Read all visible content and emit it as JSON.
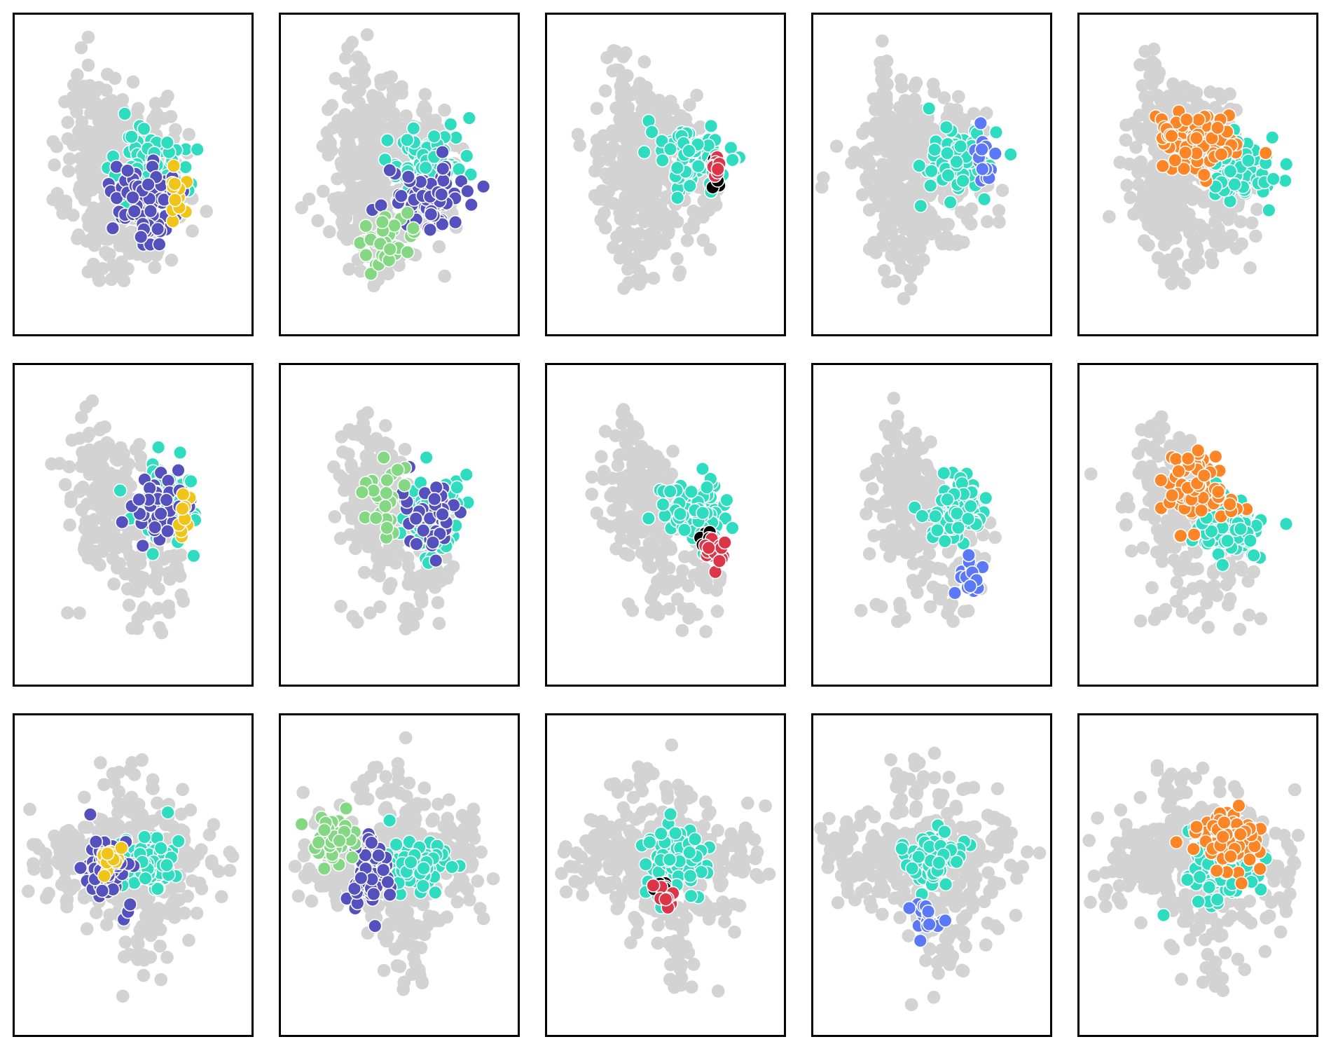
{
  "figure": {
    "rows": 3,
    "cols": 5,
    "background_color": "#d3d3d3",
    "marker_edge_color": "#ffffff",
    "frame_color": "#000000",
    "axes_visible": false
  },
  "cluster_colors": {
    "teal": "#2edcbf",
    "indigo": "#5450bd",
    "yellow": "#f0c419",
    "light-green": "#84d884",
    "red": "#dc3548",
    "black": "#000000",
    "blue": "#5a78f7",
    "orange": "#fd8526"
  },
  "chart_data": [
    {
      "type": "scatter",
      "row": 0,
      "col": 0,
      "grey_shape": "dense-vertical",
      "clusters": [
        {
          "color": "teal",
          "cx": 0.57,
          "cy": 0.48,
          "sx": 0.075,
          "sy": 0.06,
          "n": 95,
          "seed": 11
        },
        {
          "color": "indigo",
          "cx": 0.55,
          "cy": 0.59,
          "sx": 0.07,
          "sy": 0.055,
          "n": 80,
          "seed": 12
        },
        {
          "color": "yellow",
          "cx": 0.68,
          "cy": 0.57,
          "sx": 0.018,
          "sy": 0.035,
          "n": 12,
          "seed": 13
        }
      ]
    },
    {
      "type": "scatter",
      "row": 0,
      "col": 1,
      "grey_shape": "dense-vertical",
      "clusters": [
        {
          "color": "teal",
          "cx": 0.61,
          "cy": 0.47,
          "sx": 0.075,
          "sy": 0.06,
          "n": 95,
          "seed": 21
        },
        {
          "color": "indigo",
          "cx": 0.62,
          "cy": 0.58,
          "sx": 0.075,
          "sy": 0.045,
          "n": 75,
          "seed": 22
        },
        {
          "color": "light-green",
          "cx": 0.43,
          "cy": 0.71,
          "sx": 0.06,
          "sy": 0.05,
          "n": 40,
          "seed": 23
        }
      ]
    },
    {
      "type": "scatter",
      "row": 0,
      "col": 2,
      "grey_shape": "dense-vertical",
      "clusters": [
        {
          "color": "teal",
          "cx": 0.61,
          "cy": 0.45,
          "sx": 0.07,
          "sy": 0.05,
          "n": 85,
          "seed": 31
        },
        {
          "color": "black",
          "cx": 0.72,
          "cy": 0.51,
          "sx": 0.015,
          "sy": 0.02,
          "n": 8,
          "seed": 32
        },
        {
          "color": "red",
          "cx": 0.71,
          "cy": 0.48,
          "sx": 0.015,
          "sy": 0.025,
          "n": 10,
          "seed": 33
        }
      ]
    },
    {
      "type": "scatter",
      "row": 0,
      "col": 3,
      "grey_shape": "dense-vertical",
      "clusters": [
        {
          "color": "teal",
          "cx": 0.62,
          "cy": 0.46,
          "sx": 0.065,
          "sy": 0.05,
          "n": 80,
          "seed": 41
        },
        {
          "color": "blue",
          "cx": 0.72,
          "cy": 0.47,
          "sx": 0.02,
          "sy": 0.04,
          "n": 14,
          "seed": 42
        }
      ]
    },
    {
      "type": "scatter",
      "row": 0,
      "col": 4,
      "grey_shape": "dense-vertical",
      "clusters": [
        {
          "color": "teal",
          "cx": 0.67,
          "cy": 0.48,
          "sx": 0.07,
          "sy": 0.05,
          "n": 85,
          "seed": 51
        },
        {
          "color": "orange",
          "cx": 0.52,
          "cy": 0.4,
          "sx": 0.08,
          "sy": 0.05,
          "n": 80,
          "seed": 52
        }
      ]
    },
    {
      "type": "scatter",
      "row": 1,
      "col": 0,
      "grey_shape": "sparse-vertical",
      "clusters": [
        {
          "color": "teal",
          "cx": 0.63,
          "cy": 0.46,
          "sx": 0.07,
          "sy": 0.06,
          "n": 90,
          "seed": 61
        },
        {
          "color": "indigo",
          "cx": 0.6,
          "cy": 0.45,
          "sx": 0.07,
          "sy": 0.07,
          "n": 45,
          "seed": 62
        },
        {
          "color": "yellow",
          "cx": 0.7,
          "cy": 0.44,
          "sx": 0.02,
          "sy": 0.04,
          "n": 10,
          "seed": 63
        }
      ]
    },
    {
      "type": "scatter",
      "row": 1,
      "col": 1,
      "grey_shape": "sparse-vertical",
      "clusters": [
        {
          "color": "teal",
          "cx": 0.64,
          "cy": 0.47,
          "sx": 0.065,
          "sy": 0.06,
          "n": 90,
          "seed": 71
        },
        {
          "color": "indigo",
          "cx": 0.62,
          "cy": 0.46,
          "sx": 0.07,
          "sy": 0.07,
          "n": 45,
          "seed": 72
        },
        {
          "color": "light-green",
          "cx": 0.44,
          "cy": 0.41,
          "sx": 0.05,
          "sy": 0.06,
          "n": 25,
          "seed": 73
        }
      ]
    },
    {
      "type": "scatter",
      "row": 1,
      "col": 2,
      "grey_shape": "sparse-vertical",
      "clusters": [
        {
          "color": "teal",
          "cx": 0.62,
          "cy": 0.47,
          "sx": 0.065,
          "sy": 0.05,
          "n": 90,
          "seed": 81
        },
        {
          "color": "black",
          "cx": 0.68,
          "cy": 0.54,
          "sx": 0.025,
          "sy": 0.015,
          "n": 12,
          "seed": 82
        },
        {
          "color": "red",
          "cx": 0.71,
          "cy": 0.58,
          "sx": 0.02,
          "sy": 0.03,
          "n": 16,
          "seed": 83
        }
      ]
    },
    {
      "type": "scatter",
      "row": 1,
      "col": 3,
      "grey_shape": "sparse-vertical",
      "clusters": [
        {
          "color": "teal",
          "cx": 0.6,
          "cy": 0.46,
          "sx": 0.065,
          "sy": 0.05,
          "n": 90,
          "seed": 91
        },
        {
          "color": "blue",
          "cx": 0.66,
          "cy": 0.66,
          "sx": 0.035,
          "sy": 0.035,
          "n": 18,
          "seed": 92
        }
      ]
    },
    {
      "type": "scatter",
      "row": 1,
      "col": 4,
      "grey_shape": "sparse-vertical",
      "clusters": [
        {
          "color": "teal",
          "cx": 0.63,
          "cy": 0.5,
          "sx": 0.075,
          "sy": 0.055,
          "n": 90,
          "seed": 101
        },
        {
          "color": "orange",
          "cx": 0.49,
          "cy": 0.39,
          "sx": 0.08,
          "sy": 0.05,
          "n": 80,
          "seed": 102
        }
      ]
    },
    {
      "type": "scatter",
      "row": 2,
      "col": 0,
      "grey_shape": "wide",
      "clusters": [
        {
          "color": "teal",
          "cx": 0.57,
          "cy": 0.47,
          "sx": 0.075,
          "sy": 0.04,
          "n": 95,
          "seed": 111
        },
        {
          "color": "indigo",
          "cx": 0.38,
          "cy": 0.49,
          "sx": 0.05,
          "sy": 0.06,
          "n": 75,
          "seed": 112
        },
        {
          "color": "yellow",
          "cx": 0.41,
          "cy": 0.45,
          "sx": 0.03,
          "sy": 0.035,
          "n": 14,
          "seed": 113
        }
      ]
    },
    {
      "type": "scatter",
      "row": 2,
      "col": 1,
      "grey_shape": "wide",
      "clusters": [
        {
          "color": "teal",
          "cx": 0.57,
          "cy": 0.48,
          "sx": 0.075,
          "sy": 0.04,
          "n": 95,
          "seed": 121
        },
        {
          "color": "indigo",
          "cx": 0.38,
          "cy": 0.5,
          "sx": 0.04,
          "sy": 0.055,
          "n": 70,
          "seed": 122
        },
        {
          "color": "light-green",
          "cx": 0.22,
          "cy": 0.39,
          "sx": 0.05,
          "sy": 0.04,
          "n": 35,
          "seed": 123
        }
      ]
    },
    {
      "type": "scatter",
      "row": 2,
      "col": 2,
      "grey_shape": "wide",
      "clusters": [
        {
          "color": "teal",
          "cx": 0.53,
          "cy": 0.46,
          "sx": 0.06,
          "sy": 0.055,
          "n": 95,
          "seed": 131
        },
        {
          "color": "black",
          "cx": 0.48,
          "cy": 0.54,
          "sx": 0.02,
          "sy": 0.015,
          "n": 10,
          "seed": 132
        },
        {
          "color": "red",
          "cx": 0.5,
          "cy": 0.58,
          "sx": 0.025,
          "sy": 0.025,
          "n": 12,
          "seed": 133
        }
      ]
    },
    {
      "type": "scatter",
      "row": 2,
      "col": 3,
      "grey_shape": "wide",
      "clusters": [
        {
          "color": "teal",
          "cx": 0.49,
          "cy": 0.45,
          "sx": 0.06,
          "sy": 0.04,
          "n": 90,
          "seed": 141
        },
        {
          "color": "blue",
          "cx": 0.47,
          "cy": 0.64,
          "sx": 0.035,
          "sy": 0.04,
          "n": 20,
          "seed": 142
        }
      ]
    },
    {
      "type": "scatter",
      "row": 2,
      "col": 4,
      "grey_shape": "wide",
      "clusters": [
        {
          "color": "teal",
          "cx": 0.58,
          "cy": 0.49,
          "sx": 0.07,
          "sy": 0.05,
          "n": 90,
          "seed": 151
        },
        {
          "color": "orange",
          "cx": 0.64,
          "cy": 0.38,
          "sx": 0.075,
          "sy": 0.05,
          "n": 80,
          "seed": 152
        }
      ]
    }
  ]
}
